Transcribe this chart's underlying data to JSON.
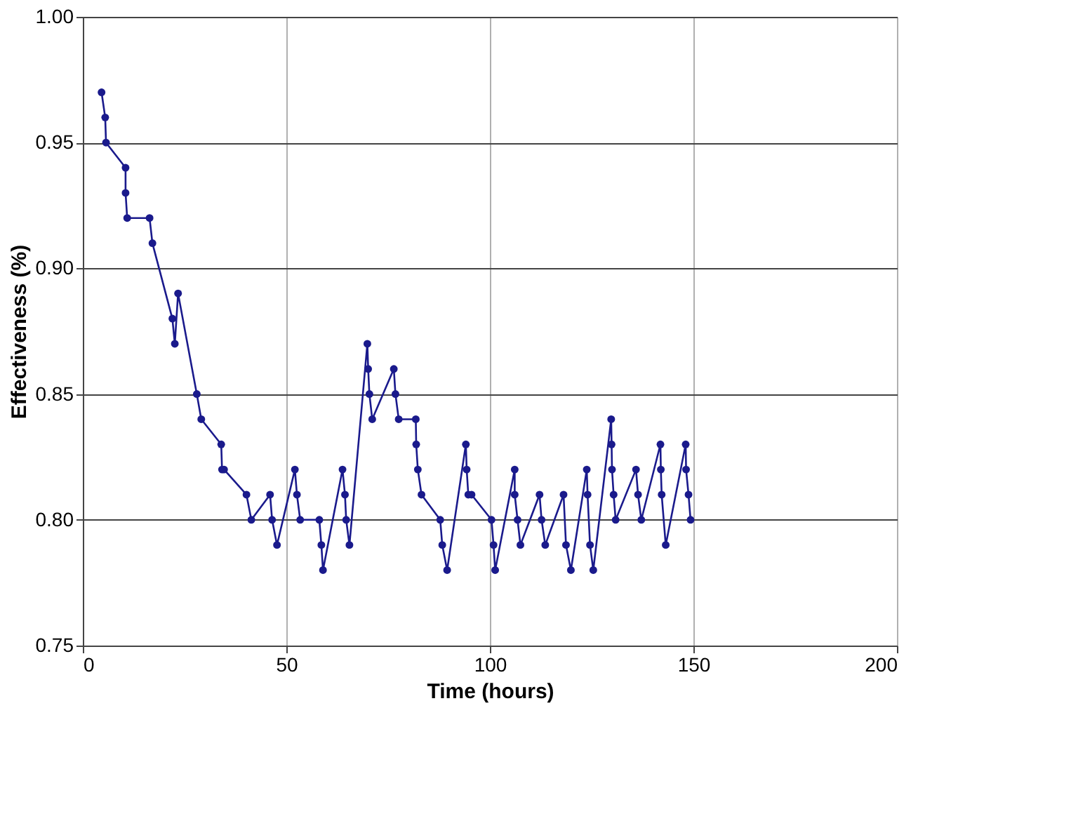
{
  "chart_data": {
    "type": "line",
    "xlabel": "Time (hours)",
    "ylabel": "Effectiveness (%)",
    "xlim": [
      0,
      200
    ],
    "xticks": [
      0,
      50,
      100,
      150,
      200
    ],
    "ylim": [
      0.75,
      1.0
    ],
    "yticks": [
      {
        "value": 0.75,
        "label": "0.75"
      },
      {
        "value": 0.8,
        "label": "0.80"
      },
      {
        "value": 0.85,
        "label": "0.85"
      },
      {
        "value": 0.9,
        "label": "0.90"
      },
      {
        "value": 0.95,
        "label": "0.95"
      },
      {
        "value": 1.0,
        "label": "1.00"
      }
    ],
    "grid": true,
    "marker": "circle",
    "line_style": "solid",
    "legend": false,
    "series": [
      {
        "color": "#1a1a8c",
        "x": [
          4.6,
          5.5,
          5.7,
          10.5,
          10.5,
          10.9,
          16.4,
          17.1,
          22.0,
          22.6,
          23.4,
          28.0,
          29.1,
          34.0,
          34.2,
          34.7,
          40.2,
          41.4,
          46.0,
          46.5,
          47.7,
          52.1,
          52.6,
          53.4,
          58.1,
          58.6,
          59.0,
          63.8,
          64.4,
          64.7,
          65.5,
          69.9,
          70.1,
          70.4,
          71.1,
          76.4,
          76.8,
          77.6,
          81.8,
          81.9,
          82.3,
          83.2,
          87.8,
          88.3,
          89.5,
          94.1,
          94.3,
          94.7,
          95.5,
          100.4,
          100.9,
          101.3,
          106.1,
          106.1,
          106.8,
          107.5,
          112.2,
          112.7,
          113.6,
          118.1,
          118.7,
          119.9,
          123.8,
          124.0,
          124.6,
          125.4,
          129.8,
          129.9,
          130.0,
          130.4,
          130.9,
          135.9,
          136.4,
          137.2,
          141.9,
          142.0,
          142.2,
          143.2,
          148.1,
          148.2,
          148.8,
          149.3
        ],
        "values": [
          0.97,
          0.96,
          0.95,
          0.94,
          0.93,
          0.92,
          0.92,
          0.91,
          0.88,
          0.87,
          0.89,
          0.85,
          0.84,
          0.83,
          0.82,
          0.82,
          0.81,
          0.8,
          0.81,
          0.8,
          0.79,
          0.82,
          0.81,
          0.8,
          0.8,
          0.79,
          0.78,
          0.82,
          0.81,
          0.8,
          0.79,
          0.87,
          0.86,
          0.85,
          0.84,
          0.86,
          0.85,
          0.84,
          0.84,
          0.83,
          0.82,
          0.81,
          0.8,
          0.79,
          0.78,
          0.83,
          0.82,
          0.81,
          0.81,
          0.8,
          0.79,
          0.78,
          0.82,
          0.81,
          0.8,
          0.79,
          0.81,
          0.8,
          0.79,
          0.81,
          0.79,
          0.78,
          0.82,
          0.81,
          0.79,
          0.78,
          0.84,
          0.83,
          0.82,
          0.81,
          0.8,
          0.82,
          0.81,
          0.8,
          0.83,
          0.82,
          0.81,
          0.79,
          0.83,
          0.82,
          0.81,
          0.8
        ]
      }
    ]
  }
}
